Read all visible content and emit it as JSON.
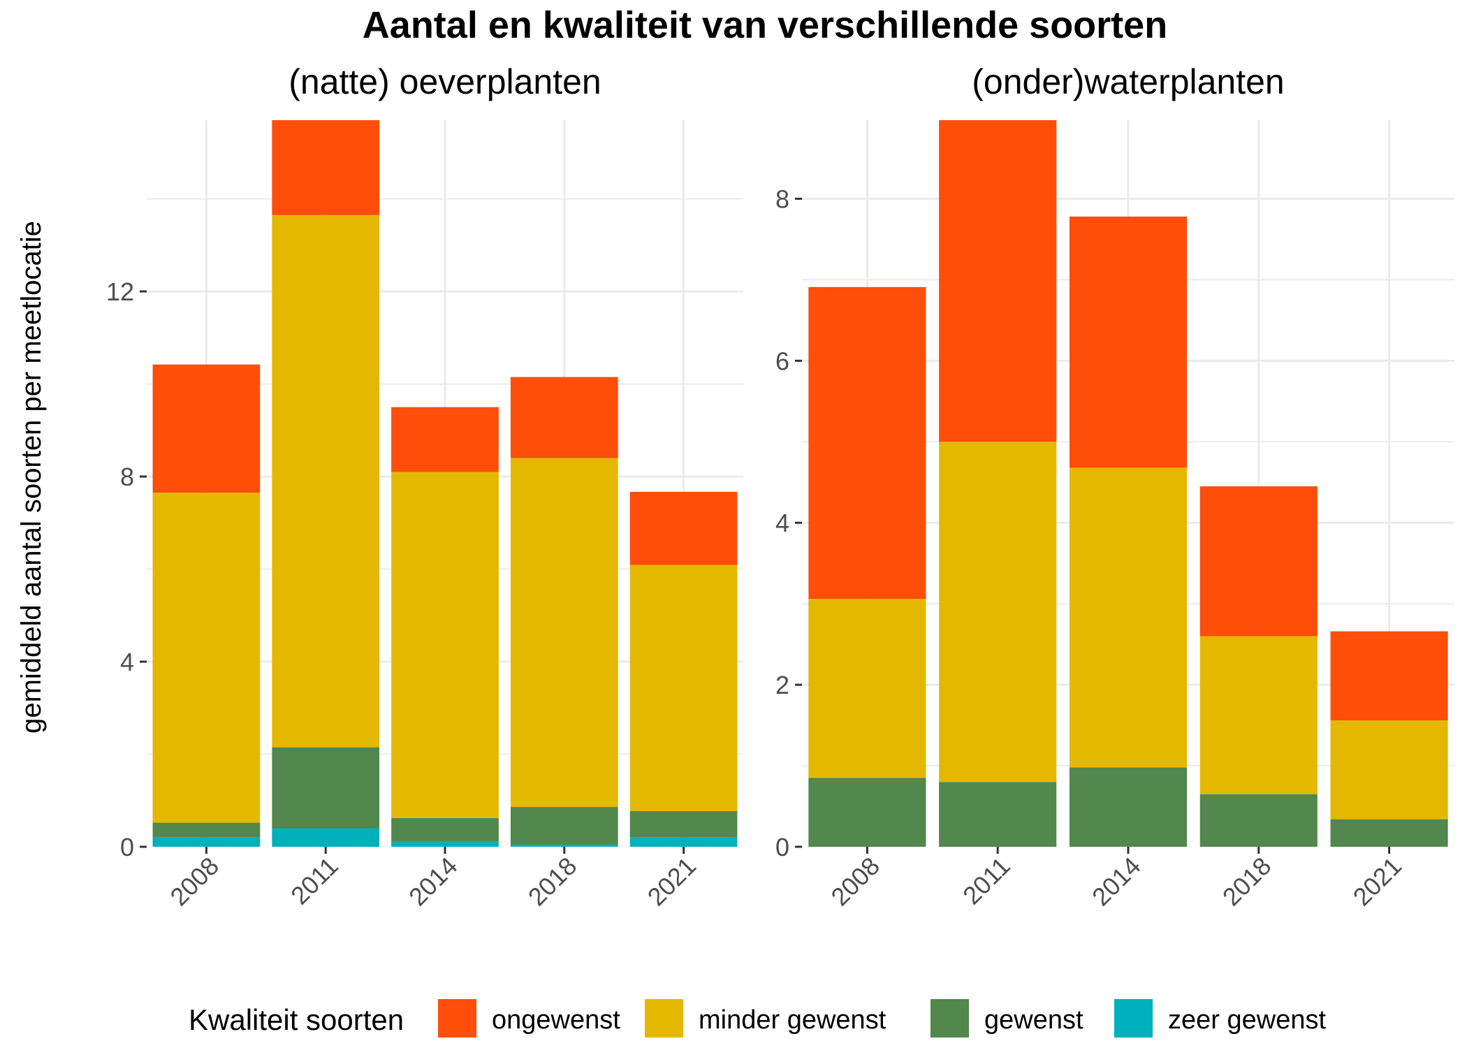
{
  "chart_data": {
    "type": "bar",
    "stacked": true,
    "title": "Aantal en kwaliteit van verschillende soorten",
    "ylabel": "gemiddeld aantal soorten per meetlocatie",
    "categories": [
      "2008",
      "2011",
      "2014",
      "2018",
      "2021"
    ],
    "grid": true,
    "legend": {
      "title": "Kwaliteit soorten",
      "position": "bottom",
      "entries": [
        {
          "label": "ongewenst",
          "color": "#FF4E0A"
        },
        {
          "label": "minder gewenst",
          "color": "#E4B800"
        },
        {
          "label": "gewenst",
          "color": "#52874D"
        },
        {
          "label": "zeer gewenst",
          "color": "#00B0BD"
        }
      ]
    },
    "panels": [
      {
        "title": "(natte) oeverplanten",
        "ylim": [
          0,
          15.7
        ],
        "yticks": [
          0,
          4,
          8,
          12
        ],
        "series": [
          {
            "name": "zeer gewenst",
            "color": "#00B0BD",
            "values": [
              0.2,
              0.4,
              0.12,
              0.04,
              0.2
            ]
          },
          {
            "name": "gewenst",
            "color": "#52874D",
            "values": [
              0.32,
              1.75,
              0.5,
              0.82,
              0.57
            ]
          },
          {
            "name": "minder gewenst",
            "color": "#E4B800",
            "values": [
              7.13,
              11.5,
              7.48,
              7.54,
              5.32
            ]
          },
          {
            "name": "ongewenst",
            "color": "#FF4E0A",
            "values": [
              2.77,
              2.05,
              1.4,
              1.75,
              1.58
            ]
          }
        ]
      },
      {
        "title": "(onder)waterplanten",
        "ylim": [
          0,
          8.97
        ],
        "yticks": [
          0,
          2,
          4,
          6,
          8
        ],
        "series": [
          {
            "name": "zeer gewenst",
            "color": "#00B0BD",
            "values": [
              0,
              0,
              0,
              0,
              0
            ]
          },
          {
            "name": "gewenst",
            "color": "#52874D",
            "values": [
              0.85,
              0.8,
              0.98,
              0.65,
              0.34
            ]
          },
          {
            "name": "minder gewenst",
            "color": "#E4B800",
            "values": [
              2.21,
              4.2,
              3.7,
              1.95,
              1.22
            ]
          },
          {
            "name": "ongewenst",
            "color": "#FF4E0A",
            "values": [
              3.85,
              3.97,
              3.1,
              1.85,
              1.1
            ]
          }
        ]
      }
    ]
  }
}
